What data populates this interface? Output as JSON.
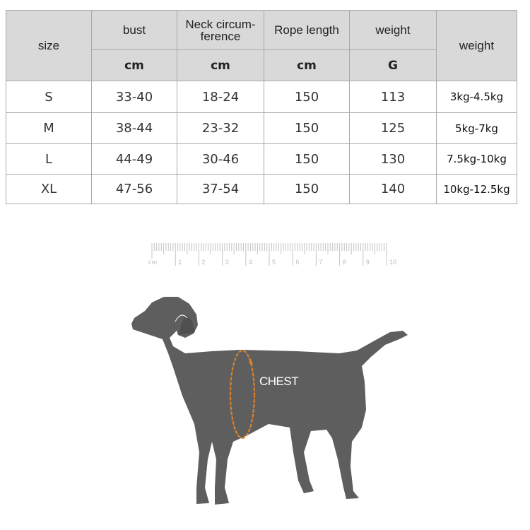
{
  "size_table": {
    "headers": {
      "size": "size",
      "bust": "bust",
      "neck": "Neck circum-\nference",
      "rope": "Rope length",
      "weight_g": "weight",
      "weight_kg": "weight"
    },
    "units": {
      "bust": "cm",
      "neck": "cm",
      "rope": "cm",
      "weight_g": "G"
    },
    "rows": [
      {
        "size": "S",
        "bust": "33-40",
        "neck": "18-24",
        "rope": "150",
        "weight_g": "113",
        "weight_kg": "3kg-4.5kg"
      },
      {
        "size": "M",
        "bust": "38-44",
        "neck": "23-32",
        "rope": "150",
        "weight_g": "125",
        "weight_kg": "5kg-7kg"
      },
      {
        "size": "L",
        "bust": "44-49",
        "neck": "30-46",
        "rope": "150",
        "weight_g": "130",
        "weight_kg": "7.5kg-10kg"
      },
      {
        "size": "XL",
        "bust": "47-56",
        "neck": "37-54",
        "rope": "150",
        "weight_g": "140",
        "weight_kg": "10kg-12.5kg"
      }
    ]
  },
  "ruler": {
    "unit": "cm",
    "labels": [
      "1",
      "2",
      "3",
      "4",
      "5",
      "6",
      "7",
      "8",
      "9",
      "10"
    ]
  },
  "illustration": {
    "label": "CHEST",
    "dog_color": "#5e5e5e",
    "measure_color": "#d9812e"
  }
}
